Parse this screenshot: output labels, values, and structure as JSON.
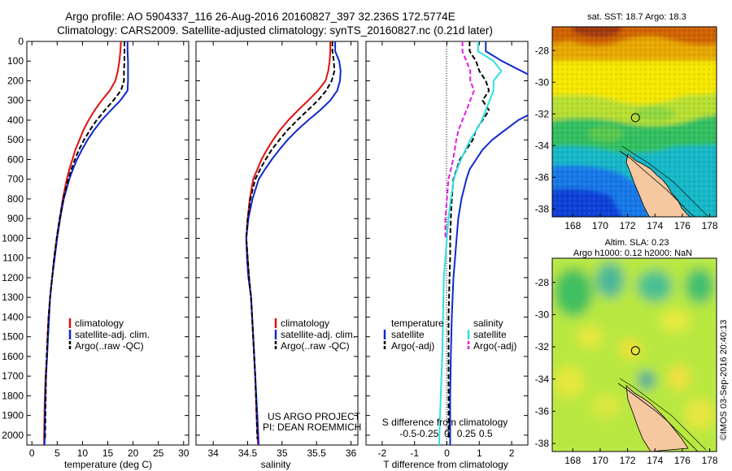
{
  "header": {
    "line1": "Argo profile: AO 5904337_116 26-Aug-2016 20160827_397 32.236S 172.5774E",
    "line2": "Climatology: CARS2009. Satellite-adjusted climatology: synTS_20160827.nc (0.21d later)"
  },
  "project_note": {
    "line1": "US ARGO PROJECT",
    "line2": "PI: DEAN ROEMMICH"
  },
  "credit": "©IMOS 03-Sep-2016 20:40:13",
  "colors": {
    "climatology": "#e01010",
    "satellite": "#1028d0",
    "argo": "#000000",
    "cyan": "#30e0e0",
    "magenta": "#e020e0"
  },
  "chart_data": [
    {
      "type": "line",
      "xlabel": "temperature (deg C)",
      "xlim": [
        -1,
        31
      ],
      "xticks": [
        0,
        5,
        10,
        15,
        20,
        25,
        30
      ],
      "ylim": [
        2050,
        0
      ],
      "yticks": [
        0,
        100,
        200,
        300,
        400,
        500,
        600,
        700,
        800,
        900,
        1000,
        1100,
        1200,
        1300,
        1400,
        1500,
        1600,
        1700,
        1800,
        1900,
        2000
      ],
      "legend": [
        "climatology",
        "satellite-adj. clim.",
        "Argo(..raw -QC)"
      ],
      "legend_position": "bottom-right",
      "series": [
        {
          "name": "climatology",
          "color": "#e01010",
          "style": "solid",
          "x": [
            17.6,
            17.5,
            17.3,
            17.0,
            16.5,
            15.4,
            13.8,
            12.4,
            11.2,
            10.2,
            9.4,
            8.6,
            8.0,
            7.4,
            6.9,
            6.1,
            5.5,
            4.9,
            4.4,
            4.0,
            3.6,
            3.3,
            3.1,
            3.0,
            2.7,
            2.5,
            2.4
          ],
          "y": [
            0,
            50,
            100,
            150,
            200,
            250,
            300,
            350,
            400,
            450,
            500,
            550,
            600,
            650,
            700,
            800,
            900,
            1000,
            1100,
            1200,
            1300,
            1400,
            1500,
            1600,
            1700,
            1850,
            2050
          ]
        },
        {
          "name": "satellite-adj. clim.",
          "color": "#1028d0",
          "style": "solid",
          "x": [
            18.9,
            18.9,
            19.0,
            19.0,
            19.0,
            18.9,
            17.5,
            15.6,
            13.8,
            12.3,
            11.0,
            9.9,
            8.9,
            8.1,
            7.4,
            6.3,
            5.6,
            5.0,
            4.5,
            4.0,
            3.6,
            3.4,
            3.2,
            3.0,
            2.8,
            2.6,
            2.5
          ],
          "y": [
            0,
            50,
            100,
            150,
            200,
            250,
            300,
            350,
            400,
            450,
            500,
            550,
            600,
            650,
            700,
            800,
            900,
            1000,
            1100,
            1200,
            1300,
            1400,
            1500,
            1600,
            1700,
            1850,
            2050
          ]
        },
        {
          "name": "Argo(..raw -QC)",
          "color": "#000000",
          "style": "dashed",
          "x": [
            18.3,
            18.3,
            18.3,
            18.2,
            18.2,
            17.6,
            16.1,
            14.4,
            12.8,
            11.5,
            10.3,
            9.3,
            8.5,
            7.8,
            7.2,
            6.2,
            5.5,
            4.9,
            4.4,
            4.0,
            3.6,
            3.3,
            3.1,
            2.9,
            2.8,
            2.6
          ],
          "y": [
            0,
            50,
            100,
            150,
            200,
            250,
            300,
            350,
            400,
            450,
            500,
            550,
            600,
            650,
            700,
            800,
            900,
            1000,
            1100,
            1200,
            1300,
            1400,
            1500,
            1600,
            1700,
            2020
          ]
        }
      ]
    },
    {
      "type": "line",
      "xlabel": "salinity",
      "xlim": [
        33.75,
        36.1
      ],
      "xticks": [
        34,
        34.5,
        35,
        35.5,
        36
      ],
      "xtick_labels": [
        "34",
        "34.5",
        "35",
        "35.5",
        "36"
      ],
      "ylim": [
        2050,
        0
      ],
      "legend": [
        "climatology",
        "satellite-adj. clim.",
        "Argo(..raw -QC)"
      ],
      "legend_position": "bottom-right",
      "series": [
        {
          "name": "climatology",
          "color": "#e01010",
          "style": "solid",
          "x": [
            35.7,
            35.7,
            35.69,
            35.67,
            35.63,
            35.52,
            35.38,
            35.23,
            35.09,
            34.97,
            34.87,
            34.78,
            34.7,
            34.64,
            34.58,
            34.53,
            34.5,
            34.48,
            34.5,
            34.52,
            34.55,
            34.58,
            34.61,
            34.63,
            34.65
          ],
          "y": [
            0,
            50,
            100,
            150,
            200,
            250,
            300,
            350,
            400,
            450,
            500,
            550,
            600,
            650,
            700,
            800,
            900,
            1000,
            1100,
            1200,
            1300,
            1500,
            1700,
            1900,
            2050
          ]
        },
        {
          "name": "satellite-adj. clim.",
          "color": "#1028d0",
          "style": "solid",
          "x": [
            35.77,
            35.77,
            35.83,
            35.85,
            35.84,
            35.8,
            35.7,
            35.55,
            35.38,
            35.22,
            35.08,
            34.96,
            34.85,
            34.75,
            34.66,
            34.57,
            34.51,
            34.48,
            34.49,
            34.51,
            34.55,
            34.58,
            34.61,
            34.64,
            34.66
          ],
          "y": [
            0,
            50,
            100,
            150,
            200,
            250,
            300,
            350,
            400,
            450,
            500,
            550,
            600,
            650,
            700,
            800,
            900,
            1000,
            1100,
            1200,
            1300,
            1500,
            1700,
            1900,
            2050
          ]
        },
        {
          "name": "Argo(..raw -QC)",
          "color": "#000000",
          "style": "dashed",
          "x": [
            35.73,
            35.73,
            35.75,
            35.76,
            35.72,
            35.64,
            35.52,
            35.37,
            35.22,
            35.08,
            34.96,
            34.85,
            34.76,
            34.68,
            34.61,
            34.54,
            34.5,
            34.48,
            34.5,
            34.52,
            34.55,
            34.58,
            34.61,
            34.63,
            34.64
          ],
          "y": [
            0,
            50,
            100,
            150,
            200,
            250,
            300,
            350,
            400,
            450,
            500,
            550,
            600,
            650,
            700,
            800,
            900,
            1000,
            1100,
            1200,
            1300,
            1500,
            1700,
            1900,
            2020
          ]
        }
      ]
    },
    {
      "type": "line",
      "xlabel": "T difference from climatology",
      "xlabel_top": "S difference from climatology",
      "xlim": [
        -2.5,
        2.5
      ],
      "xticks": [
        -2,
        -1,
        0,
        1,
        2
      ],
      "xticks_top": [
        -0.5,
        -0.25,
        0,
        0.25,
        0.5
      ],
      "xtick_labels_top": [
        "-0.5",
        "-0.25",
        "0",
        "0.25",
        "0.5"
      ],
      "ylim": [
        2050,
        0
      ],
      "legend_left_title": "temperature",
      "legend_right_title": "salinity",
      "legend_left": [
        "satellite",
        "Argo(-adj)"
      ],
      "legend_right": [
        "satellite",
        "Argo(-adj)"
      ],
      "legend_position": "bottom",
      "series": [
        {
          "name": "satellite",
          "quantity": "temperature",
          "color": "#1028d0",
          "style": "solid",
          "x": [
            1.2,
            1.2,
            1.7,
            2.3,
            2.9,
            3.2,
            3.2,
            2.8,
            2.2,
            1.8,
            1.4,
            1.1,
            0.9,
            0.7,
            0.6,
            0.45,
            0.35,
            0.3,
            0.25,
            0.2,
            0.15,
            0.12,
            0.1,
            0.1
          ],
          "y": [
            0,
            50,
            100,
            150,
            200,
            250,
            300,
            350,
            400,
            450,
            500,
            550,
            600,
            650,
            700,
            800,
            900,
            1000,
            1100,
            1200,
            1400,
            1600,
            1800,
            2050
          ]
        },
        {
          "name": "Argo(-adj)",
          "quantity": "temperature",
          "color": "#000000",
          "style": "dashed",
          "x": [
            0.7,
            0.7,
            0.9,
            1.0,
            1.2,
            1.3,
            1.1,
            1.3,
            1.1,
            0.9,
            0.8,
            0.6,
            0.4,
            0.3,
            0.2,
            0.15,
            0.12,
            0.1,
            0.1,
            0.08,
            0.05,
            0.05,
            0.05,
            0.05
          ],
          "y": [
            0,
            50,
            100,
            150,
            200,
            250,
            300,
            350,
            400,
            450,
            500,
            550,
            600,
            650,
            700,
            800,
            900,
            1000,
            1100,
            1200,
            1400,
            1600,
            1800,
            2020
          ]
        },
        {
          "name": "satellite",
          "quantity": "salinity",
          "color": "#30e0e0",
          "style": "solid",
          "x": [
            0.4,
            0.4,
            0.6,
            0.7,
            0.6,
            0.6,
            0.55,
            0.5,
            0.45,
            0.38,
            0.3,
            0.24,
            0.18,
            0.13,
            0.09,
            0.05,
            0.02,
            0.0,
            -0.02,
            -0.04,
            -0.05,
            -0.06,
            -0.08,
            -0.1
          ],
          "y": [
            0,
            50,
            100,
            150,
            200,
            250,
            300,
            350,
            400,
            450,
            500,
            550,
            600,
            650,
            700,
            800,
            900,
            1000,
            1100,
            1200,
            1400,
            1600,
            1800,
            2050
          ]
        },
        {
          "name": "Argo(-adj)",
          "quantity": "salinity",
          "color": "#e020e0",
          "style": "dashed",
          "x": [
            0.2,
            0.2,
            0.25,
            0.3,
            0.3,
            0.35,
            0.3,
            0.25,
            0.2,
            0.15,
            0.12,
            0.1,
            0.08,
            0.05,
            0.02,
            0.0,
            -0.02,
            -0.02
          ],
          "y": [
            0,
            50,
            100,
            150,
            200,
            250,
            300,
            350,
            400,
            450,
            500,
            550,
            600,
            650,
            700,
            800,
            900,
            1000
          ]
        }
      ]
    },
    {
      "type": "heatmap",
      "title": "sat. SST: 18.7  Argo: 18.3",
      "xlim": [
        166.5,
        178.5
      ],
      "ylim": [
        -38.5,
        -26.5
      ],
      "xticks": [
        168,
        170,
        172,
        174,
        176,
        178
      ],
      "yticks": [
        -38,
        -36,
        -34,
        -32,
        -30,
        -28
      ],
      "marker": {
        "lon": 172.58,
        "lat": -32.24
      }
    },
    {
      "type": "heatmap",
      "title": "Altim. SLA: 0.23",
      "subtitle": "Argo h1000: 0.12 h2000: NaN",
      "xlim": [
        166.5,
        178.5
      ],
      "ylim": [
        -38.5,
        -26.5
      ],
      "xticks": [
        168,
        170,
        172,
        174,
        176,
        178
      ],
      "yticks": [
        -38,
        -36,
        -34,
        -32,
        -30,
        -28
      ],
      "marker": {
        "lon": 172.58,
        "lat": -32.24
      }
    }
  ]
}
